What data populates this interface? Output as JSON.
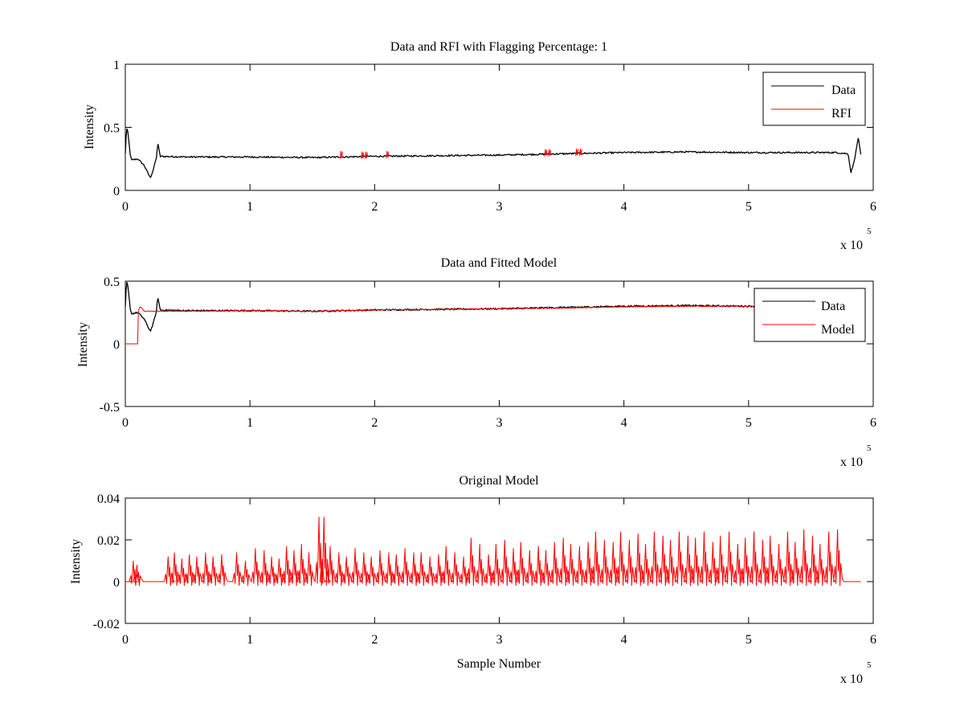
{
  "figure": {
    "background": "#ffffff",
    "axis_color": "#000000",
    "data_color": "#000000",
    "rfi_color": "#ff0000"
  },
  "chart_data": [
    {
      "type": "line",
      "title": "Data and RFI with Flagging Percentage: 1",
      "xlabel": "",
      "ylabel": "Intensity",
      "xlim": [
        0,
        6
      ],
      "ylim": [
        0,
        1
      ],
      "xticks": [
        "0",
        "1",
        "2",
        "3",
        "4",
        "5",
        "6"
      ],
      "yticks": [
        "0",
        "0.5",
        "1"
      ],
      "x_multiplier": "x 10",
      "x_exponent": "5",
      "legend": {
        "placement": "top-right",
        "entries": [
          "Data",
          "RFI"
        ]
      },
      "series": [
        {
          "name": "Data",
          "color": "#000000",
          "x": [
            0,
            0.01,
            0.02,
            0.04,
            0.05,
            0.1,
            0.15,
            0.2,
            0.22,
            0.25,
            0.26,
            0.28,
            0.5,
            1.0,
            1.5,
            2.0,
            2.5,
            3.0,
            3.5,
            4.0,
            4.5,
            5.0,
            5.5,
            5.7,
            5.8,
            5.82,
            5.84,
            5.86,
            5.88,
            5.9
          ],
          "y": [
            0.29,
            0.5,
            0.46,
            0.28,
            0.24,
            0.25,
            0.2,
            0.1,
            0.15,
            0.26,
            0.38,
            0.27,
            0.265,
            0.265,
            0.26,
            0.27,
            0.275,
            0.28,
            0.29,
            0.3,
            0.305,
            0.3,
            0.3,
            0.3,
            0.29,
            0.14,
            0.2,
            0.3,
            0.42,
            0.28
          ]
        },
        {
          "name": "RFI",
          "color": "#ff0000",
          "x": [
            1.73,
            1.9,
            1.93,
            2.1,
            3.37,
            3.4,
            3.62,
            3.65
          ],
          "y": [
            0.28,
            0.275,
            0.275,
            0.28,
            0.295,
            0.295,
            0.3,
            0.3
          ]
        }
      ]
    },
    {
      "type": "line",
      "title": "Data and Fitted Model",
      "xlabel": "",
      "ylabel": "Intensity",
      "xlim": [
        0,
        6
      ],
      "ylim": [
        -0.5,
        0.5
      ],
      "xticks": [
        "0",
        "1",
        "2",
        "3",
        "4",
        "5",
        "6"
      ],
      "yticks": [
        "-0.5",
        "0",
        "0.5"
      ],
      "x_multiplier": "x 10",
      "x_exponent": "5",
      "legend": {
        "placement": "top-right",
        "entries": [
          "Data",
          "Model"
        ]
      },
      "series": [
        {
          "name": "Data",
          "color": "#000000",
          "x": [
            0,
            0.01,
            0.02,
            0.04,
            0.05,
            0.1,
            0.15,
            0.2,
            0.22,
            0.25,
            0.26,
            0.28,
            0.5,
            1.0,
            1.5,
            2.0,
            2.5,
            3.0,
            3.5,
            4.0,
            4.5,
            5.0,
            5.5,
            5.7,
            5.8,
            5.82,
            5.84,
            5.86,
            5.88,
            5.9
          ],
          "y": [
            0.29,
            0.5,
            0.46,
            0.28,
            0.24,
            0.25,
            0.2,
            0.1,
            0.15,
            0.26,
            0.38,
            0.27,
            0.265,
            0.265,
            0.26,
            0.27,
            0.275,
            0.28,
            0.29,
            0.3,
            0.305,
            0.3,
            0.3,
            0.3,
            0.29,
            0.14,
            0.2,
            0.3,
            0.42,
            0.28
          ]
        },
        {
          "name": "Model",
          "color": "#ff0000",
          "x": [
            0,
            0.1,
            0.1,
            0.12,
            0.15,
            0.5,
            1.0,
            1.5,
            2.0,
            2.5,
            3.0,
            3.5,
            4.0,
            4.5,
            5.0,
            5.5,
            5.9
          ],
          "y": [
            0,
            0,
            0.25,
            0.3,
            0.26,
            0.26,
            0.265,
            0.26,
            0.27,
            0.275,
            0.28,
            0.285,
            0.295,
            0.3,
            0.3,
            0.3,
            0.3
          ]
        }
      ]
    },
    {
      "type": "line",
      "title": "Original Model",
      "xlabel": "Sample Number",
      "ylabel": "Intensity",
      "xlim": [
        0,
        6
      ],
      "ylim": [
        -0.02,
        0.04
      ],
      "xticks": [
        "0",
        "1",
        "2",
        "3",
        "4",
        "5",
        "6"
      ],
      "yticks": [
        "-0.02",
        "0",
        "0.02",
        "0.04"
      ],
      "x_multiplier": "x 10",
      "x_exponent": "5",
      "series": [
        {
          "color": "#ff0000",
          "baseline": 0,
          "x_range": [
            0,
            5.9
          ],
          "spikes": {
            "x": [
              0.07,
              0.1,
              0.35,
              0.4,
              0.46,
              0.52,
              0.58,
              0.65,
              0.71,
              0.78,
              0.9,
              0.97,
              1.05,
              1.12,
              1.18,
              1.24,
              1.3,
              1.36,
              1.42,
              1.48,
              1.56,
              1.6,
              1.65,
              1.72,
              1.78,
              1.85,
              1.92,
              1.98,
              2.05,
              2.12,
              2.18,
              2.25,
              2.32,
              2.38,
              2.45,
              2.52,
              2.58,
              2.65,
              2.72,
              2.78,
              2.85,
              2.92,
              2.98,
              3.05,
              3.12,
              3.18,
              3.25,
              3.32,
              3.38,
              3.45,
              3.52,
              3.58,
              3.65,
              3.72,
              3.78,
              3.85,
              3.92,
              3.98,
              4.05,
              4.12,
              4.18,
              4.25,
              4.32,
              4.38,
              4.45,
              4.52,
              4.58,
              4.65,
              4.72,
              4.78,
              4.85,
              4.92,
              4.98,
              5.05,
              5.12,
              5.18,
              5.25,
              5.32,
              5.38,
              5.45,
              5.52,
              5.58,
              5.65,
              5.72
            ],
            "y": [
              0.01,
              0.008,
              0.012,
              0.014,
              0.011,
              0.013,
              0.012,
              0.014,
              0.012,
              0.013,
              0.014,
              0.01,
              0.016,
              0.015,
              0.012,
              0.011,
              0.017,
              0.015,
              0.018,
              0.014,
              0.031,
              0.031,
              0.017,
              0.014,
              0.012,
              0.016,
              0.014,
              0.012,
              0.015,
              0.014,
              0.013,
              0.016,
              0.014,
              0.014,
              0.012,
              0.013,
              0.017,
              0.014,
              0.012,
              0.021,
              0.018,
              0.013,
              0.018,
              0.02,
              0.016,
              0.019,
              0.015,
              0.017,
              0.015,
              0.019,
              0.021,
              0.018,
              0.017,
              0.019,
              0.024,
              0.02,
              0.019,
              0.024,
              0.02,
              0.023,
              0.018,
              0.024,
              0.022,
              0.02,
              0.024,
              0.022,
              0.021,
              0.024,
              0.019,
              0.022,
              0.024,
              0.018,
              0.021,
              0.024,
              0.02,
              0.022,
              0.018,
              0.024,
              0.019,
              0.025,
              0.022,
              0.018,
              0.024,
              0.025
            ]
          }
        }
      ]
    }
  ]
}
